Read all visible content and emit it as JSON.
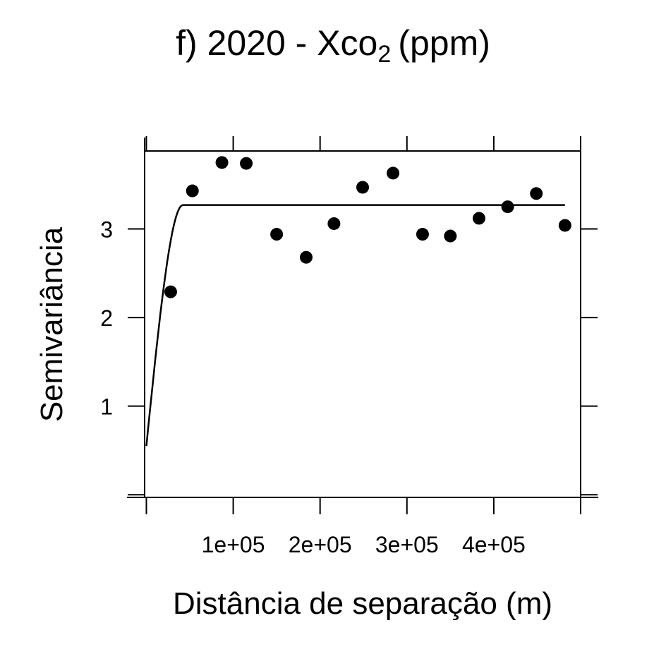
{
  "chart_data": {
    "type": "scatter",
    "title": {
      "prefix": "f) 2020 - Xco",
      "subscript": "2",
      "unit": "(ppm)"
    },
    "xlabel": "Distância de separação (m)",
    "ylabel": "Semivariância",
    "xlim": [
      -2000,
      500000
    ],
    "ylim": [
      -0.03,
      3.88
    ],
    "x_ticks": [
      0,
      100000,
      200000,
      300000,
      400000,
      500000
    ],
    "x_tick_labels": [
      "",
      "1e+05",
      "2e+05",
      "3e+05",
      "4e+05",
      ""
    ],
    "y_ticks": [
      0,
      1,
      2,
      3
    ],
    "y_tick_labels": [
      "",
      "1",
      "2",
      "3"
    ],
    "grid": false,
    "points": {
      "x": [
        28000,
        53000,
        87000,
        115000,
        150000,
        184000,
        216000,
        249000,
        284000,
        318000,
        350000,
        383000,
        416000,
        449000,
        482000
      ],
      "y": [
        2.29,
        3.43,
        3.75,
        3.74,
        2.94,
        2.68,
        3.06,
        3.47,
        3.63,
        2.94,
        2.92,
        3.12,
        3.25,
        3.4,
        3.04
      ]
    },
    "model": {
      "type": "spherical",
      "nugget": 0.55,
      "sill": 3.27,
      "range": 42000,
      "x_max": 482000
    },
    "colors": {
      "points": "#000000",
      "line": "#000000"
    }
  }
}
